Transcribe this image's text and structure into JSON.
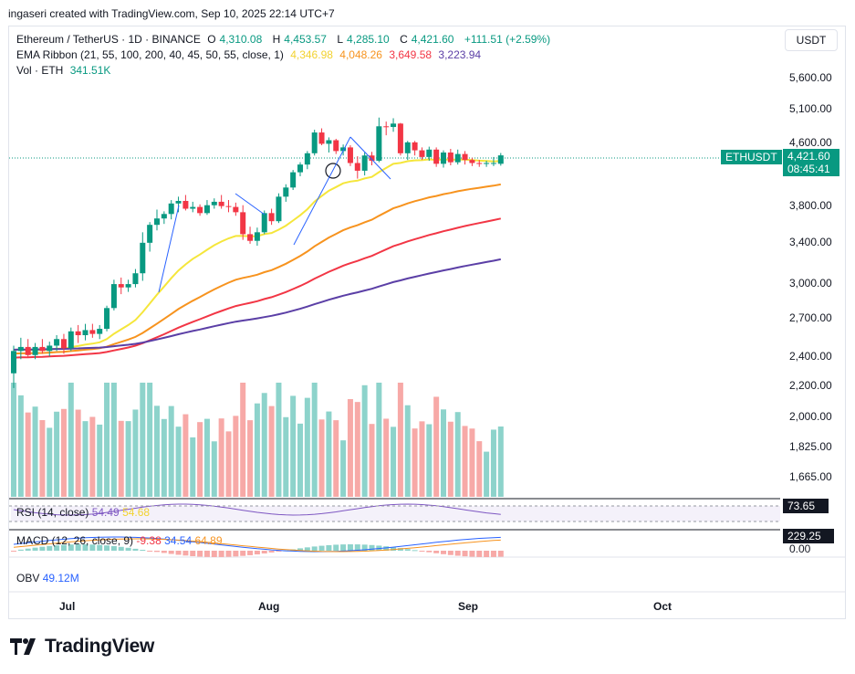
{
  "caption": "ingaseri created with TradingView.com, Sep 10, 2025 22:14 UTC+7",
  "legend": {
    "symbol": "Ethereum / TetherUS · 1D · BINANCE",
    "o_label": "O",
    "o": "4,310.08",
    "h_label": "H",
    "h": "4,453.57",
    "l_label": "L",
    "l": "4,285.10",
    "c_label": "C",
    "c": "4,421.60",
    "change": "+111.51 (+2.59%)",
    "ema_label": "EMA Ribbon (21, 55, 100, 200, 40, 45, 50, 55, close, 1)",
    "ema_values": [
      "4,346.98",
      "4,048.26",
      "3,649.58",
      "3,223.94"
    ],
    "vol_label": "Vol · ETH",
    "vol_value": "341.51K"
  },
  "currency": "USDT",
  "price_axis": [
    "5,600.00",
    "5,100.00",
    "4,600.00",
    "3,800.00",
    "3,400.00",
    "3,000.00",
    "2,700.00",
    "2,400.00",
    "2,200.00",
    "2,000.00",
    "1,825.00",
    "1,665.00"
  ],
  "last_price_tag": {
    "symbol": "ETHUSDT",
    "price": "4,421.60",
    "countdown": "08:45:41"
  },
  "rsi": {
    "label": "RSI (14, close)",
    "value1": "54.49",
    "value2": "54.68",
    "axis_tag": "73.65"
  },
  "macd": {
    "label": "MACD (12, 26, close, 9)",
    "v1": "-9.38",
    "v2": "34.54",
    "v3": "64.89",
    "axis_tag": "229.25",
    "zero": "0.00"
  },
  "obv": {
    "label": "OBV",
    "value": "49.12M"
  },
  "time_axis": [
    "Jul",
    "Aug",
    "Sep",
    "Oct"
  ],
  "brand": "TradingView",
  "colors": {
    "up": "#089981",
    "down": "#f23645",
    "ema21": "#f5e63b",
    "ema55": "#f7931e",
    "ema100": "#f23645",
    "ema200": "#5b3fa6",
    "vol_up": "#8dd3cb",
    "vol_down": "#f7a9a7"
  },
  "chart_data": {
    "type": "candlestick",
    "title": "Ethereum / TetherUS · 1D · BINANCE",
    "scale": "log",
    "y_ticks": [
      5600,
      5100,
      4600,
      3800,
      3400,
      3000,
      2700,
      2400,
      2200,
      2000,
      1825,
      1665
    ],
    "x_ticks": [
      "Jul",
      "Aug",
      "Sep",
      "Oct"
    ],
    "candles": [
      [
        2280,
        2480,
        2180,
        2440
      ],
      [
        2440,
        2540,
        2380,
        2470
      ],
      [
        2470,
        2530,
        2390,
        2410
      ],
      [
        2410,
        2500,
        2380,
        2470
      ],
      [
        2470,
        2530,
        2420,
        2440
      ],
      [
        2440,
        2510,
        2400,
        2480
      ],
      [
        2480,
        2560,
        2440,
        2530
      ],
      [
        2530,
        2570,
        2420,
        2460
      ],
      [
        2460,
        2620,
        2440,
        2590
      ],
      [
        2590,
        2640,
        2500,
        2560
      ],
      [
        2560,
        2650,
        2520,
        2600
      ],
      [
        2600,
        2650,
        2540,
        2570
      ],
      [
        2570,
        2640,
        2530,
        2610
      ],
      [
        2610,
        2800,
        2590,
        2780
      ],
      [
        2780,
        3030,
        2760,
        2990
      ],
      [
        2990,
        3050,
        2900,
        2960
      ],
      [
        2960,
        3030,
        2920,
        2990
      ],
      [
        2990,
        3130,
        2960,
        3090
      ],
      [
        3090,
        3500,
        3020,
        3390
      ],
      [
        3390,
        3610,
        3300,
        3580
      ],
      [
        3580,
        3750,
        3520,
        3650
      ],
      [
        3650,
        3730,
        3590,
        3700
      ],
      [
        3700,
        3860,
        3640,
        3820
      ],
      [
        3820,
        3900,
        3720,
        3850
      ],
      [
        3850,
        3920,
        3740,
        3760
      ],
      [
        3760,
        3840,
        3720,
        3780
      ],
      [
        3780,
        3810,
        3680,
        3710
      ],
      [
        3710,
        3860,
        3690,
        3800
      ],
      [
        3800,
        3880,
        3760,
        3840
      ],
      [
        3840,
        3920,
        3760,
        3790
      ],
      [
        3790,
        3860,
        3720,
        3780
      ],
      [
        3780,
        3830,
        3680,
        3720
      ],
      [
        3720,
        3800,
        3420,
        3480
      ],
      [
        3480,
        3560,
        3380,
        3410
      ],
      [
        3410,
        3550,
        3360,
        3500
      ],
      [
        3500,
        3740,
        3480,
        3710
      ],
      [
        3710,
        3760,
        3580,
        3620
      ],
      [
        3620,
        3940,
        3600,
        3900
      ],
      [
        3900,
        4050,
        3840,
        4010
      ],
      [
        4010,
        4230,
        3980,
        4200
      ],
      [
        4200,
        4330,
        4150,
        4300
      ],
      [
        4300,
        4480,
        4240,
        4450
      ],
      [
        4450,
        4780,
        4420,
        4740
      ],
      [
        4740,
        4800,
        4560,
        4580
      ],
      [
        4580,
        4670,
        4460,
        4630
      ],
      [
        4630,
        4650,
        4440,
        4480
      ],
      [
        4480,
        4570,
        4420,
        4530
      ],
      [
        4530,
        4560,
        4280,
        4320
      ],
      [
        4320,
        4410,
        4120,
        4220
      ],
      [
        4220,
        4460,
        4160,
        4420
      ],
      [
        4420,
        4470,
        4290,
        4350
      ],
      [
        4350,
        4960,
        4330,
        4830
      ],
      [
        4830,
        4900,
        4700,
        4820
      ],
      [
        4820,
        4950,
        4750,
        4870
      ],
      [
        4870,
        4880,
        4420,
        4450
      ],
      [
        4450,
        4620,
        4360,
        4600
      ],
      [
        4600,
        4620,
        4420,
        4490
      ],
      [
        4490,
        4530,
        4360,
        4400
      ],
      [
        4400,
        4540,
        4350,
        4500
      ],
      [
        4500,
        4530,
        4270,
        4310
      ],
      [
        4310,
        4490,
        4260,
        4460
      ],
      [
        4460,
        4510,
        4290,
        4330
      ],
      [
        4330,
        4500,
        4300,
        4440
      ],
      [
        4440,
        4480,
        4300,
        4360
      ],
      [
        4360,
        4390,
        4280,
        4320
      ],
      [
        4320,
        4360,
        4270,
        4310
      ],
      [
        4310,
        4350,
        4270,
        4320
      ],
      [
        4320,
        4400,
        4280,
        4320
      ],
      [
        4310,
        4453.57,
        4285.1,
        4421.6
      ]
    ],
    "ema": {
      "names": [
        "EMA 21",
        "EMA 55",
        "EMA 100",
        "EMA 200"
      ],
      "last": [
        4346.98,
        4048.26,
        3649.58,
        3223.94
      ]
    },
    "volume_last": "341.51K",
    "rsi_last": [
      54.49,
      54.68
    ],
    "macd_last": [
      -9.38,
      34.54,
      64.89
    ],
    "obv_last": "49.12M"
  }
}
